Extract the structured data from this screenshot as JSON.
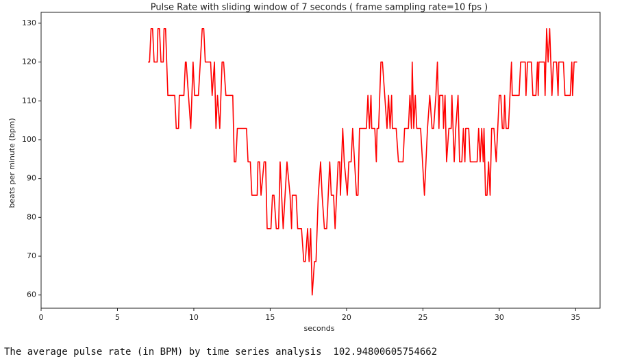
{
  "chart_data": {
    "type": "line",
    "title": "Pulse Rate with sliding window of 7 seconds  ( frame sampling rate=10 fps )",
    "xlabel": "seconds",
    "ylabel": "beats per minute (bpm)",
    "color": "#ff0000",
    "grid": false,
    "xlim": [
      0,
      36.6
    ],
    "xticks": [
      0,
      5,
      10,
      15,
      20,
      25,
      30,
      35
    ],
    "ylim": [
      56.6,
      132.8
    ],
    "yticks": [
      60,
      70,
      80,
      90,
      100,
      110,
      120,
      130
    ],
    "x": [
      7.0,
      7.1,
      7.2,
      7.3,
      7.4,
      7.6,
      7.65,
      7.75,
      7.85,
      8.0,
      8.05,
      8.15,
      8.3,
      8.75,
      8.85,
      9.0,
      9.05,
      9.35,
      9.45,
      9.5,
      9.65,
      9.8,
      9.95,
      10.05,
      10.3,
      10.55,
      10.65,
      10.75,
      11.1,
      11.2,
      11.35,
      11.45,
      11.55,
      11.7,
      11.85,
      11.95,
      12.1,
      12.55,
      12.65,
      12.75,
      12.85,
      13.45,
      13.55,
      13.7,
      13.8,
      14.15,
      14.2,
      14.3,
      14.4,
      14.6,
      14.7,
      14.8,
      15.05,
      15.15,
      15.25,
      15.4,
      15.55,
      15.65,
      15.75,
      15.85,
      16.1,
      16.3,
      16.4,
      16.45,
      16.7,
      16.8,
      17.05,
      17.2,
      17.3,
      17.45,
      17.55,
      17.65,
      17.75,
      17.9,
      18.0,
      18.15,
      18.3,
      18.4,
      18.55,
      18.7,
      18.9,
      19.0,
      19.15,
      19.25,
      19.35,
      19.45,
      19.55,
      19.6,
      19.75,
      19.85,
      20.05,
      20.15,
      20.3,
      20.4,
      20.65,
      20.75,
      20.8,
      20.85,
      21.3,
      21.4,
      21.5,
      21.6,
      21.65,
      21.85,
      21.95,
      22.0,
      22.1,
      22.25,
      22.35,
      22.5,
      22.65,
      22.75,
      22.85,
      22.95,
      23.0,
      23.25,
      23.4,
      23.7,
      23.8,
      24.05,
      24.15,
      24.25,
      24.3,
      24.4,
      24.5,
      24.6,
      24.85,
      25.1,
      25.3,
      25.45,
      25.6,
      25.7,
      25.85,
      25.95,
      26.05,
      26.1,
      26.3,
      26.35,
      26.45,
      26.55,
      26.7,
      26.85,
      26.9,
      27.05,
      27.15,
      27.3,
      27.4,
      27.55,
      27.65,
      27.75,
      27.8,
      28.0,
      28.1,
      28.55,
      28.65,
      28.75,
      28.85,
      28.95,
      29.0,
      29.1,
      29.2,
      29.3,
      29.4,
      29.5,
      29.65,
      29.8,
      29.9,
      30.0,
      30.1,
      30.2,
      30.3,
      30.35,
      30.45,
      30.6,
      30.7,
      30.8,
      30.85,
      31.3,
      31.4,
      31.7,
      31.75,
      31.85,
      32.1,
      32.2,
      32.4,
      32.5,
      32.55,
      32.6,
      32.95,
      33.0,
      33.1,
      33.2,
      33.3,
      33.45,
      33.55,
      33.75,
      33.85,
      33.9,
      34.2,
      34.3,
      34.65,
      34.75,
      34.8,
      34.9,
      35.1
    ],
    "values": [
      120,
      120,
      128.6,
      128.6,
      120,
      120,
      128.6,
      128.6,
      120,
      120,
      128.6,
      128.6,
      111.4,
      111.4,
      102.9,
      102.9,
      111.4,
      111.4,
      120,
      120,
      111.4,
      102.9,
      120,
      111.4,
      111.4,
      128.6,
      128.6,
      120,
      120,
      111.4,
      120,
      102.9,
      111.4,
      102.9,
      120,
      120,
      111.4,
      111.4,
      94.3,
      94.3,
      102.9,
      102.9,
      94.3,
      94.3,
      85.7,
      85.7,
      94.3,
      94.3,
      85.7,
      94.3,
      94.3,
      77.1,
      77.1,
      85.7,
      85.7,
      77.1,
      77.1,
      94.3,
      85.7,
      77.1,
      94.3,
      85.7,
      77.1,
      85.7,
      85.7,
      77.1,
      77.1,
      68.6,
      68.6,
      77.1,
      68.6,
      77.1,
      60,
      68.6,
      68.6,
      85.7,
      94.3,
      85.7,
      77.1,
      77.1,
      94.3,
      85.7,
      85.7,
      77.1,
      85.7,
      94.3,
      94.3,
      85.7,
      102.9,
      94.3,
      85.7,
      94.3,
      94.3,
      102.9,
      85.7,
      85.7,
      94.3,
      102.9,
      102.9,
      111.4,
      102.9,
      111.4,
      102.9,
      102.9,
      94.3,
      102.9,
      102.9,
      120,
      120,
      111.4,
      102.9,
      111.4,
      102.9,
      111.4,
      102.9,
      102.9,
      94.3,
      94.3,
      102.9,
      102.9,
      111.4,
      102.9,
      120,
      102.9,
      111.4,
      102.9,
      102.9,
      85.7,
      102.9,
      111.4,
      102.9,
      102.9,
      111.4,
      120,
      102.9,
      111.4,
      111.4,
      102.9,
      111.4,
      94.3,
      102.9,
      102.9,
      111.4,
      94.3,
      102.9,
      111.4,
      94.3,
      94.3,
      102.9,
      94.3,
      102.9,
      102.9,
      94.3,
      94.3,
      102.9,
      94.3,
      102.9,
      94.3,
      102.9,
      85.7,
      85.7,
      94.3,
      85.7,
      102.9,
      102.9,
      94.3,
      102.9,
      111.4,
      111.4,
      102.9,
      102.9,
      111.4,
      102.9,
      102.9,
      111.4,
      120,
      111.4,
      111.4,
      120,
      120,
      111.4,
      120,
      120,
      111.4,
      111.4,
      120,
      111.4,
      120,
      120,
      111.4,
      128.6,
      120,
      128.6,
      111.4,
      120,
      120,
      111.4,
      120,
      120,
      111.4,
      111.4,
      120,
      111.4,
      120,
      120
    ]
  },
  "output": {
    "text": "The average pulse rate (in BPM) by time series analysis  102.94800605754662"
  }
}
